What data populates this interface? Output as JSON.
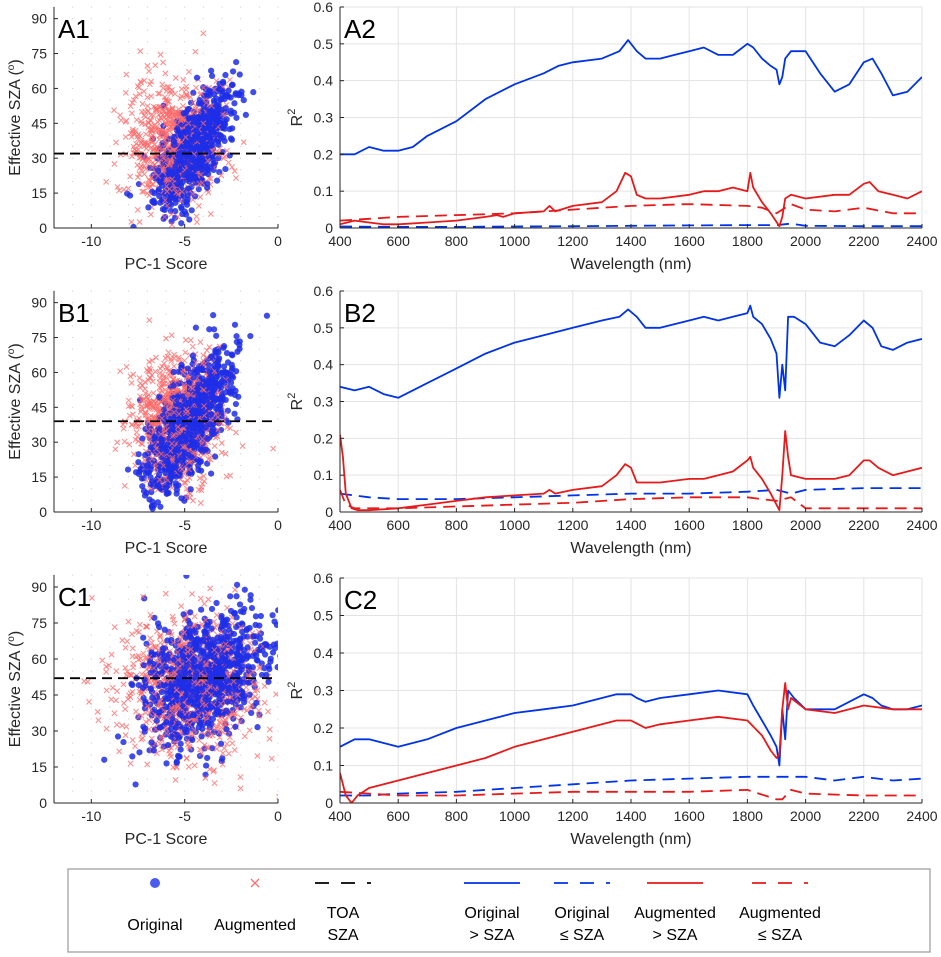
{
  "chart_data": [
    {
      "id": "A1",
      "type": "scatter",
      "label": "A1",
      "xlabel": "PC-1 Score",
      "ylabel": "Effective SZA (°)",
      "xlim": [
        -12,
        0
      ],
      "ylim": [
        0,
        95
      ],
      "xticks": [
        -10,
        -5,
        0
      ],
      "yticks": [
        0,
        15,
        30,
        45,
        60,
        75,
        90
      ],
      "toa_sza": 32,
      "series": [
        {
          "name": "Original",
          "marker": "circle",
          "color": "#1f2ee6",
          "center": [
            -4.6,
            34
          ],
          "spread": [
            1.0,
            12
          ],
          "slope": 8.5,
          "n": 900
        },
        {
          "name": "Augmented",
          "marker": "x",
          "color": "#ff6a6a",
          "center": [
            -5.6,
            36
          ],
          "spread": [
            1.2,
            14
          ],
          "slope": 0,
          "n": 700
        }
      ]
    },
    {
      "id": "A2",
      "type": "line",
      "label": "A2",
      "xlabel": "Wavelength (nm)",
      "ylabel": "R²",
      "xlim": [
        400,
        2400
      ],
      "ylim": [
        0,
        0.6
      ],
      "xticks": [
        400,
        600,
        800,
        1000,
        1200,
        1400,
        1600,
        1800,
        2000,
        2200,
        2400
      ],
      "yticks": [
        0,
        0.1,
        0.2,
        0.3,
        0.4,
        0.5,
        0.6
      ],
      "series": [
        {
          "name": "Original > SZA",
          "color": "#0033e6",
          "dash": "solid",
          "x": [
            400,
            450,
            500,
            550,
            600,
            650,
            700,
            800,
            900,
            1000,
            1100,
            1150,
            1200,
            1300,
            1360,
            1390,
            1420,
            1450,
            1500,
            1550,
            1600,
            1650,
            1700,
            1750,
            1800,
            1820,
            1850,
            1880,
            1900,
            1910,
            1920,
            1930,
            1950,
            2000,
            2050,
            2100,
            2150,
            2200,
            2230,
            2260,
            2300,
            2350,
            2400
          ],
          "y": [
            0.2,
            0.2,
            0.22,
            0.21,
            0.21,
            0.22,
            0.25,
            0.29,
            0.35,
            0.39,
            0.42,
            0.44,
            0.45,
            0.46,
            0.48,
            0.51,
            0.48,
            0.46,
            0.46,
            0.47,
            0.48,
            0.49,
            0.47,
            0.47,
            0.5,
            0.49,
            0.46,
            0.44,
            0.43,
            0.39,
            0.41,
            0.46,
            0.48,
            0.48,
            0.42,
            0.37,
            0.39,
            0.45,
            0.46,
            0.42,
            0.36,
            0.37,
            0.41
          ]
        },
        {
          "name": "Original ≤ SZA",
          "color": "#0033e6",
          "dash": "dashed",
          "x": [
            400,
            600,
            800,
            1000,
            1200,
            1400,
            1600,
            1800,
            1900,
            1950,
            2000,
            2200,
            2400
          ],
          "y": [
            0.004,
            0.003,
            0.003,
            0.004,
            0.005,
            0.006,
            0.007,
            0.008,
            0.008,
            0.012,
            0.006,
            0.005,
            0.005
          ]
        },
        {
          "name": "Augmented > SZA",
          "color": "#e61a1a",
          "dash": "solid",
          "x": [
            400,
            450,
            500,
            550,
            600,
            700,
            800,
            900,
            940,
            960,
            1000,
            1100,
            1120,
            1140,
            1200,
            1300,
            1350,
            1380,
            1400,
            1420,
            1450,
            1500,
            1600,
            1650,
            1700,
            1750,
            1800,
            1810,
            1820,
            1850,
            1880,
            1910,
            1920,
            1930,
            1950,
            2000,
            2100,
            2150,
            2200,
            2220,
            2250,
            2300,
            2350,
            2400
          ],
          "y": [
            0.01,
            0.02,
            0.015,
            0.01,
            0.01,
            0.015,
            0.02,
            0.03,
            0.035,
            0.03,
            0.04,
            0.045,
            0.06,
            0.045,
            0.06,
            0.07,
            0.1,
            0.15,
            0.14,
            0.09,
            0.08,
            0.08,
            0.09,
            0.1,
            0.1,
            0.11,
            0.1,
            0.15,
            0.11,
            0.07,
            0.04,
            0.005,
            0.03,
            0.08,
            0.09,
            0.08,
            0.09,
            0.09,
            0.12,
            0.125,
            0.1,
            0.09,
            0.08,
            0.1
          ]
        },
        {
          "name": "Augmented ≤ SZA",
          "color": "#e61a1a",
          "dash": "dashed",
          "x": [
            400,
            500,
            600,
            800,
            1000,
            1200,
            1400,
            1600,
            1800,
            1850,
            1900,
            1950,
            2000,
            2100,
            2200,
            2300,
            2400
          ],
          "y": [
            0.02,
            0.025,
            0.03,
            0.035,
            0.04,
            0.05,
            0.06,
            0.065,
            0.06,
            0.055,
            0.04,
            0.065,
            0.05,
            0.045,
            0.055,
            0.04,
            0.04
          ]
        }
      ]
    },
    {
      "id": "B1",
      "type": "scatter",
      "label": "B1",
      "xlabel": "PC-1 Score",
      "ylabel": "Effective SZA (°)",
      "xlim": [
        -12,
        0
      ],
      "ylim": [
        0,
        95
      ],
      "xticks": [
        -10,
        -5,
        0
      ],
      "yticks": [
        0,
        15,
        30,
        45,
        60,
        75,
        90
      ],
      "toa_sza": 39,
      "series": [
        {
          "name": "Original",
          "marker": "circle",
          "color": "#1f2ee6",
          "center": [
            -4.8,
            38
          ],
          "spread": [
            1.1,
            14
          ],
          "slope": 9.0,
          "n": 1000
        },
        {
          "name": "Augmented",
          "marker": "x",
          "color": "#ff6a6a",
          "center": [
            -5.4,
            40
          ],
          "spread": [
            1.2,
            14
          ],
          "slope": 0,
          "n": 800
        }
      ]
    },
    {
      "id": "B2",
      "type": "line",
      "label": "B2",
      "xlabel": "Wavelength (nm)",
      "ylabel": "R²",
      "xlim": [
        400,
        2400
      ],
      "ylim": [
        0,
        0.6
      ],
      "xticks": [
        400,
        600,
        800,
        1000,
        1200,
        1400,
        1600,
        1800,
        2000,
        2200,
        2400
      ],
      "yticks": [
        0,
        0.1,
        0.2,
        0.3,
        0.4,
        0.5,
        0.6
      ],
      "series": [
        {
          "name": "Original > SZA",
          "color": "#0033e6",
          "dash": "solid",
          "x": [
            400,
            450,
            500,
            550,
            600,
            650,
            700,
            800,
            900,
            1000,
            1100,
            1200,
            1300,
            1360,
            1390,
            1420,
            1450,
            1500,
            1600,
            1650,
            1700,
            1750,
            1800,
            1810,
            1820,
            1850,
            1880,
            1900,
            1910,
            1920,
            1930,
            1940,
            1960,
            2000,
            2050,
            2100,
            2150,
            2200,
            2230,
            2260,
            2300,
            2350,
            2400
          ],
          "y": [
            0.34,
            0.33,
            0.34,
            0.32,
            0.31,
            0.33,
            0.35,
            0.39,
            0.43,
            0.46,
            0.48,
            0.5,
            0.52,
            0.53,
            0.55,
            0.53,
            0.5,
            0.5,
            0.52,
            0.53,
            0.52,
            0.53,
            0.54,
            0.56,
            0.53,
            0.51,
            0.47,
            0.43,
            0.31,
            0.4,
            0.33,
            0.53,
            0.53,
            0.51,
            0.46,
            0.45,
            0.48,
            0.52,
            0.5,
            0.45,
            0.44,
            0.46,
            0.47
          ]
        },
        {
          "name": "Original ≤ SZA",
          "color": "#0033e6",
          "dash": "dashed",
          "x": [
            400,
            500,
            600,
            800,
            1000,
            1200,
            1400,
            1600,
            1800,
            1900,
            1950,
            2000,
            2200,
            2400
          ],
          "y": [
            0.05,
            0.04,
            0.035,
            0.035,
            0.04,
            0.045,
            0.05,
            0.05,
            0.055,
            0.06,
            0.05,
            0.06,
            0.065,
            0.065
          ]
        },
        {
          "name": "Augmented > SZA",
          "color": "#e61a1a",
          "dash": "solid",
          "x": [
            400,
            410,
            420,
            440,
            460,
            500,
            600,
            700,
            800,
            900,
            1000,
            1100,
            1120,
            1140,
            1200,
            1300,
            1350,
            1380,
            1400,
            1420,
            1450,
            1500,
            1600,
            1650,
            1700,
            1750,
            1800,
            1810,
            1820,
            1850,
            1880,
            1910,
            1920,
            1930,
            1940,
            1950,
            2000,
            2100,
            2150,
            2200,
            2220,
            2250,
            2300,
            2350,
            2400
          ],
          "y": [
            0.21,
            0.15,
            0.05,
            0.01,
            0.005,
            0.005,
            0.01,
            0.02,
            0.03,
            0.04,
            0.045,
            0.05,
            0.06,
            0.05,
            0.06,
            0.07,
            0.1,
            0.13,
            0.12,
            0.08,
            0.08,
            0.08,
            0.09,
            0.09,
            0.1,
            0.11,
            0.14,
            0.15,
            0.12,
            0.09,
            0.05,
            0.005,
            0.1,
            0.22,
            0.15,
            0.1,
            0.09,
            0.09,
            0.1,
            0.14,
            0.14,
            0.12,
            0.1,
            0.11,
            0.12
          ]
        },
        {
          "name": "Augmented ≤ SZA",
          "color": "#e61a1a",
          "dash": "dashed",
          "x": [
            400,
            420,
            450,
            500,
            600,
            800,
            1000,
            1200,
            1400,
            1600,
            1800,
            1900,
            1950,
            2000,
            2100,
            2200,
            2300,
            2400
          ],
          "y": [
            0.06,
            0.02,
            0.01,
            0.01,
            0.01,
            0.015,
            0.02,
            0.025,
            0.035,
            0.04,
            0.04,
            0.03,
            0.04,
            0.01,
            0.01,
            0.01,
            0.01,
            0.01
          ]
        }
      ]
    },
    {
      "id": "C1",
      "type": "scatter",
      "label": "C1",
      "xlabel": "PC-1 Score",
      "ylabel": "Effective SZA (°)",
      "xlim": [
        -12,
        0
      ],
      "ylim": [
        0,
        95
      ],
      "xticks": [
        -10,
        -5,
        0
      ],
      "yticks": [
        0,
        15,
        30,
        45,
        60,
        75,
        90
      ],
      "toa_sza": 52,
      "series": [
        {
          "name": "Original",
          "marker": "circle",
          "color": "#1f2ee6",
          "center": [
            -4.0,
            52
          ],
          "spread": [
            1.6,
            16
          ],
          "slope": 3.0,
          "n": 1000
        },
        {
          "name": "Augmented",
          "marker": "x",
          "color": "#ff6a6a",
          "center": [
            -4.8,
            48
          ],
          "spread": [
            1.9,
            15
          ],
          "slope": 0,
          "n": 800
        }
      ]
    },
    {
      "id": "C2",
      "type": "line",
      "label": "C2",
      "xlabel": "Wavelength (nm)",
      "ylabel": "R²",
      "xlim": [
        400,
        2400
      ],
      "ylim": [
        0,
        0.6
      ],
      "xticks": [
        400,
        600,
        800,
        1000,
        1200,
        1400,
        1600,
        1800,
        2000,
        2200,
        2400
      ],
      "yticks": [
        0,
        0.1,
        0.2,
        0.3,
        0.4,
        0.5,
        0.6
      ],
      "series": [
        {
          "name": "Original > SZA",
          "color": "#0033e6",
          "dash": "solid",
          "x": [
            400,
            450,
            500,
            550,
            600,
            700,
            800,
            900,
            1000,
            1100,
            1200,
            1300,
            1350,
            1400,
            1420,
            1450,
            1500,
            1600,
            1700,
            1800,
            1820,
            1850,
            1880,
            1900,
            1910,
            1920,
            1930,
            1940,
            1960,
            2000,
            2100,
            2200,
            2230,
            2260,
            2300,
            2350,
            2400
          ],
          "y": [
            0.15,
            0.17,
            0.17,
            0.16,
            0.15,
            0.17,
            0.2,
            0.22,
            0.24,
            0.25,
            0.26,
            0.28,
            0.29,
            0.29,
            0.28,
            0.27,
            0.28,
            0.29,
            0.3,
            0.29,
            0.26,
            0.22,
            0.18,
            0.15,
            0.1,
            0.25,
            0.17,
            0.3,
            0.28,
            0.25,
            0.25,
            0.29,
            0.28,
            0.26,
            0.25,
            0.25,
            0.26
          ]
        },
        {
          "name": "Original ≤ SZA",
          "color": "#0033e6",
          "dash": "dashed",
          "x": [
            400,
            500,
            600,
            800,
            1000,
            1200,
            1400,
            1600,
            1800,
            1900,
            2000,
            2100,
            2200,
            2300,
            2400
          ],
          "y": [
            0.02,
            0.02,
            0.025,
            0.03,
            0.04,
            0.05,
            0.06,
            0.065,
            0.07,
            0.07,
            0.07,
            0.06,
            0.07,
            0.06,
            0.065
          ]
        },
        {
          "name": "Augmented > SZA",
          "color": "#e61a1a",
          "dash": "solid",
          "x": [
            400,
            420,
            440,
            460,
            500,
            600,
            700,
            800,
            900,
            1000,
            1100,
            1200,
            1300,
            1350,
            1400,
            1450,
            1500,
            1600,
            1700,
            1800,
            1850,
            1880,
            1900,
            1910,
            1920,
            1930,
            1940,
            1950,
            2000,
            2100,
            2200,
            2300,
            2400
          ],
          "y": [
            0.08,
            0.02,
            0.0,
            0.02,
            0.04,
            0.06,
            0.08,
            0.1,
            0.12,
            0.15,
            0.17,
            0.19,
            0.21,
            0.22,
            0.22,
            0.2,
            0.21,
            0.22,
            0.23,
            0.22,
            0.18,
            0.14,
            0.12,
            0.13,
            0.25,
            0.32,
            0.25,
            0.28,
            0.25,
            0.24,
            0.26,
            0.25,
            0.25
          ]
        },
        {
          "name": "Augmented ≤ SZA",
          "color": "#e61a1a",
          "dash": "dashed",
          "x": [
            400,
            500,
            600,
            800,
            1000,
            1200,
            1400,
            1600,
            1800,
            1900,
            1920,
            1950,
            2000,
            2200,
            2400
          ],
          "y": [
            0.03,
            0.025,
            0.02,
            0.02,
            0.025,
            0.03,
            0.03,
            0.03,
            0.035,
            0.01,
            0.01,
            0.035,
            0.025,
            0.02,
            0.02
          ]
        }
      ]
    }
  ],
  "legend": {
    "items": [
      {
        "label_lines": [
          "Original"
        ],
        "symbol": "circle",
        "color": "#4a5cf0"
      },
      {
        "label_lines": [
          "Augmented"
        ],
        "symbol": "x",
        "color": "#ff6a6a"
      },
      {
        "label_lines": [
          "TOA",
          "SZA"
        ],
        "symbol": "dash",
        "color": "#000000"
      },
      {
        "label_lines": [
          "Original",
          "> SZA"
        ],
        "symbol": "line",
        "color": "#0033e6"
      },
      {
        "label_lines": [
          "Original",
          "≤ SZA"
        ],
        "symbol": "dash",
        "color": "#0033e6"
      },
      {
        "label_lines": [
          "Augmented",
          "> SZA"
        ],
        "symbol": "line",
        "color": "#e61a1a"
      },
      {
        "label_lines": [
          "Augmented",
          "≤ SZA"
        ],
        "symbol": "dash",
        "color": "#e61a1a"
      }
    ]
  }
}
